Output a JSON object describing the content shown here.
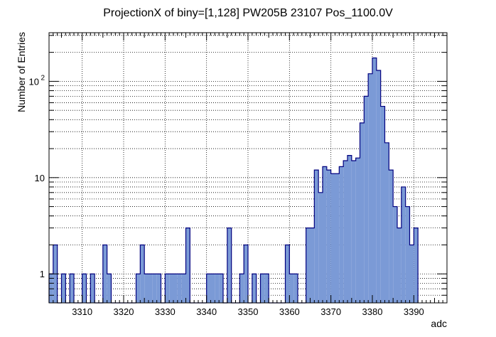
{
  "chart_data": {
    "type": "histogram",
    "title": "ProjectionX of biny=[1,128] PW205B 23107 Pos_1100.0V",
    "xlabel": "adc",
    "ylabel": "Number of Entries",
    "xlim": [
      3302,
      3398
    ],
    "ylim": [
      0.5,
      320
    ],
    "y_scale": "log",
    "grid": true,
    "fill_color": "#7b9ad6",
    "line_color": "#00007f",
    "bin_width": 1,
    "x_ticks": [
      "3310",
      "3320",
      "3330",
      "3340",
      "3350",
      "3360",
      "3370",
      "3380",
      "3390"
    ],
    "y_ticks": [
      {
        "value": 1,
        "label": "1"
      },
      {
        "value": 10,
        "label": "10"
      },
      {
        "value": 100,
        "label": "10",
        "exponent": "2"
      }
    ],
    "bins": [
      {
        "x": 3302,
        "y": 1
      },
      {
        "x": 3303,
        "y": 2
      },
      {
        "x": 3304,
        "y": 0
      },
      {
        "x": 3305,
        "y": 1
      },
      {
        "x": 3306,
        "y": 0
      },
      {
        "x": 3307,
        "y": 1
      },
      {
        "x": 3308,
        "y": 0
      },
      {
        "x": 3309,
        "y": 0
      },
      {
        "x": 3310,
        "y": 1
      },
      {
        "x": 3311,
        "y": 0
      },
      {
        "x": 3312,
        "y": 1
      },
      {
        "x": 3313,
        "y": 0
      },
      {
        "x": 3314,
        "y": 0
      },
      {
        "x": 3315,
        "y": 2
      },
      {
        "x": 3316,
        "y": 1
      },
      {
        "x": 3317,
        "y": 0
      },
      {
        "x": 3318,
        "y": 0
      },
      {
        "x": 3319,
        "y": 0
      },
      {
        "x": 3320,
        "y": 0
      },
      {
        "x": 3321,
        "y": 0
      },
      {
        "x": 3322,
        "y": 0
      },
      {
        "x": 3323,
        "y": 1
      },
      {
        "x": 3324,
        "y": 2
      },
      {
        "x": 3325,
        "y": 1
      },
      {
        "x": 3326,
        "y": 1
      },
      {
        "x": 3327,
        "y": 1
      },
      {
        "x": 3328,
        "y": 1
      },
      {
        "x": 3329,
        "y": 0
      },
      {
        "x": 3330,
        "y": 1
      },
      {
        "x": 3331,
        "y": 1
      },
      {
        "x": 3332,
        "y": 1
      },
      {
        "x": 3333,
        "y": 1
      },
      {
        "x": 3334,
        "y": 1
      },
      {
        "x": 3335,
        "y": 3
      },
      {
        "x": 3336,
        "y": 0
      },
      {
        "x": 3337,
        "y": 0
      },
      {
        "x": 3338,
        "y": 0
      },
      {
        "x": 3339,
        "y": 0
      },
      {
        "x": 3340,
        "y": 1
      },
      {
        "x": 3341,
        "y": 1
      },
      {
        "x": 3342,
        "y": 1
      },
      {
        "x": 3343,
        "y": 1
      },
      {
        "x": 3344,
        "y": 0
      },
      {
        "x": 3345,
        "y": 3
      },
      {
        "x": 3346,
        "y": 0
      },
      {
        "x": 3347,
        "y": 0
      },
      {
        "x": 3348,
        "y": 1
      },
      {
        "x": 3349,
        "y": 2
      },
      {
        "x": 3350,
        "y": 0
      },
      {
        "x": 3351,
        "y": 1
      },
      {
        "x": 3352,
        "y": 0
      },
      {
        "x": 3353,
        "y": 1
      },
      {
        "x": 3354,
        "y": 1
      },
      {
        "x": 3355,
        "y": 0
      },
      {
        "x": 3356,
        "y": 0
      },
      {
        "x": 3357,
        "y": 0
      },
      {
        "x": 3358,
        "y": 0
      },
      {
        "x": 3359,
        "y": 2
      },
      {
        "x": 3360,
        "y": 1
      },
      {
        "x": 3361,
        "y": 1
      },
      {
        "x": 3362,
        "y": 0
      },
      {
        "x": 3363,
        "y": 0
      },
      {
        "x": 3364,
        "y": 3
      },
      {
        "x": 3365,
        "y": 3
      },
      {
        "x": 3366,
        "y": 12
      },
      {
        "x": 3367,
        "y": 7
      },
      {
        "x": 3368,
        "y": 13
      },
      {
        "x": 3369,
        "y": 12
      },
      {
        "x": 3370,
        "y": 11
      },
      {
        "x": 3371,
        "y": 11
      },
      {
        "x": 3372,
        "y": 13
      },
      {
        "x": 3373,
        "y": 15
      },
      {
        "x": 3374,
        "y": 17
      },
      {
        "x": 3375,
        "y": 15
      },
      {
        "x": 3376,
        "y": 16
      },
      {
        "x": 3377,
        "y": 37
      },
      {
        "x": 3378,
        "y": 70
      },
      {
        "x": 3379,
        "y": 120
      },
      {
        "x": 3380,
        "y": 175
      },
      {
        "x": 3381,
        "y": 130
      },
      {
        "x": 3382,
        "y": 55
      },
      {
        "x": 3383,
        "y": 23
      },
      {
        "x": 3384,
        "y": 12
      },
      {
        "x": 3385,
        "y": 5
      },
      {
        "x": 3386,
        "y": 3
      },
      {
        "x": 3387,
        "y": 8
      },
      {
        "x": 3388,
        "y": 5
      },
      {
        "x": 3389,
        "y": 2
      },
      {
        "x": 3390,
        "y": 3
      }
    ]
  }
}
